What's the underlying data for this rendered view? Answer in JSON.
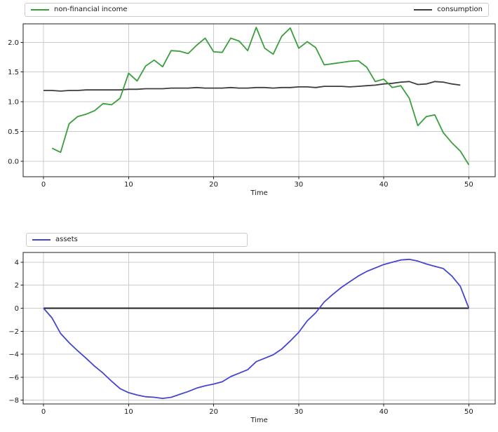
{
  "figure": {
    "background": "#ffffff",
    "grid_color": "#cccccc",
    "spine_color": "#1f1f1f",
    "tick_text_color": "#1a1a1a"
  },
  "chart_data": [
    {
      "type": "line",
      "title": "",
      "xlabel": "Time",
      "ylabel": "",
      "xlim": [
        -2.4,
        53.1
      ],
      "ylim": [
        -0.26,
        2.31
      ],
      "grid": true,
      "legend_position": "above axes, full width, entries at left and right",
      "xticks": {
        "values": [
          0,
          10,
          20,
          30,
          40,
          50
        ],
        "labels": [
          "0",
          "10",
          "20",
          "30",
          "40",
          "50"
        ]
      },
      "yticks": {
        "values": [
          0.0,
          0.5,
          1.0,
          1.5,
          2.0
        ],
        "labels": [
          "0.0",
          "0.5",
          "1.0",
          "1.5",
          "2.0"
        ]
      },
      "series": [
        {
          "name": "non-financial income",
          "color": "#3a9e3c",
          "line_width": 1.8,
          "x": [
            1,
            2,
            3,
            4,
            5,
            6,
            7,
            8,
            9,
            10,
            11,
            12,
            13,
            14,
            15,
            16,
            17,
            18,
            19,
            20,
            21,
            22,
            23,
            24,
            25,
            26,
            27,
            28,
            29,
            30,
            31,
            32,
            33,
            34,
            35,
            36,
            37,
            38,
            39,
            40,
            41,
            42,
            43,
            44,
            45,
            46,
            47,
            48,
            49,
            50
          ],
          "y": [
            0.22,
            0.15,
            0.63,
            0.75,
            0.79,
            0.85,
            0.97,
            0.95,
            1.06,
            1.48,
            1.35,
            1.6,
            1.7,
            1.59,
            1.86,
            1.85,
            1.81,
            1.95,
            2.07,
            1.84,
            1.83,
            2.07,
            2.02,
            1.86,
            2.25,
            1.9,
            1.8,
            2.1,
            2.24,
            1.9,
            2.01,
            1.91,
            1.62,
            1.64,
            1.66,
            1.68,
            1.69,
            1.58,
            1.34,
            1.38,
            1.24,
            1.27,
            1.06,
            0.6,
            0.75,
            0.78,
            0.48,
            0.31,
            0.17,
            -0.06
          ]
        },
        {
          "name": "consumption",
          "color": "#3d3d3d",
          "line_width": 1.8,
          "x": [
            0,
            1,
            2,
            3,
            4,
            5,
            6,
            7,
            8,
            9,
            10,
            11,
            12,
            13,
            14,
            15,
            16,
            17,
            18,
            19,
            20,
            21,
            22,
            23,
            24,
            25,
            26,
            27,
            28,
            29,
            30,
            31,
            32,
            33,
            34,
            35,
            36,
            37,
            38,
            39,
            40,
            41,
            42,
            43,
            44,
            45,
            46,
            47,
            48,
            49
          ],
          "y": [
            1.19,
            1.19,
            1.18,
            1.19,
            1.19,
            1.2,
            1.2,
            1.2,
            1.2,
            1.2,
            1.21,
            1.21,
            1.22,
            1.22,
            1.22,
            1.23,
            1.23,
            1.23,
            1.24,
            1.23,
            1.23,
            1.23,
            1.24,
            1.23,
            1.23,
            1.24,
            1.24,
            1.23,
            1.24,
            1.24,
            1.25,
            1.25,
            1.24,
            1.26,
            1.26,
            1.26,
            1.25,
            1.26,
            1.27,
            1.28,
            1.3,
            1.31,
            1.33,
            1.34,
            1.29,
            1.3,
            1.34,
            1.33,
            1.3,
            1.28
          ]
        }
      ]
    },
    {
      "type": "line",
      "title": "",
      "xlabel": "Time",
      "ylabel": "",
      "xlim": [
        -2.4,
        53.1
      ],
      "ylim": [
        -8.33,
        4.85
      ],
      "grid": true,
      "legend_position": "above axes, left half width",
      "xticks": {
        "values": [
          0,
          10,
          20,
          30,
          40,
          50
        ],
        "labels": [
          "0",
          "10",
          "20",
          "30",
          "40",
          "50"
        ]
      },
      "yticks": {
        "values": [
          -8,
          -6,
          -4,
          -2,
          0,
          2,
          4
        ],
        "labels": [
          "−8",
          "−6",
          "−4",
          "−2",
          "0",
          "2",
          "4"
        ]
      },
      "series": [
        {
          "name": "assets",
          "color": "#4545d0",
          "line_width": 1.8,
          "x": [
            0,
            1,
            2,
            3,
            4,
            5,
            6,
            7,
            8,
            9,
            10,
            11,
            12,
            13,
            14,
            15,
            16,
            17,
            18,
            19,
            20,
            21,
            22,
            23,
            24,
            25,
            26,
            27,
            28,
            29,
            30,
            31,
            32,
            33,
            34,
            35,
            36,
            37,
            38,
            39,
            40,
            41,
            42,
            43,
            44,
            45,
            46,
            47,
            48,
            49,
            50
          ],
          "y": [
            0.0,
            -0.85,
            -2.2,
            -3.0,
            -3.7,
            -4.35,
            -5.05,
            -5.65,
            -6.35,
            -7.0,
            -7.35,
            -7.55,
            -7.7,
            -7.75,
            -7.85,
            -7.75,
            -7.5,
            -7.25,
            -6.95,
            -6.75,
            -6.6,
            -6.4,
            -5.95,
            -5.65,
            -5.35,
            -4.65,
            -4.35,
            -4.05,
            -3.55,
            -2.85,
            -2.1,
            -1.1,
            -0.4,
            0.55,
            1.2,
            1.8,
            2.3,
            2.8,
            3.2,
            3.5,
            3.8,
            4.0,
            4.2,
            4.25,
            4.1,
            3.85,
            3.65,
            3.45,
            2.8,
            1.9,
            0.0
          ]
        },
        {
          "name": "",
          "color": "#1f1f1f",
          "line_width": 2,
          "in_legend": false,
          "x": [
            0,
            50
          ],
          "y": [
            0,
            0
          ]
        }
      ]
    }
  ]
}
